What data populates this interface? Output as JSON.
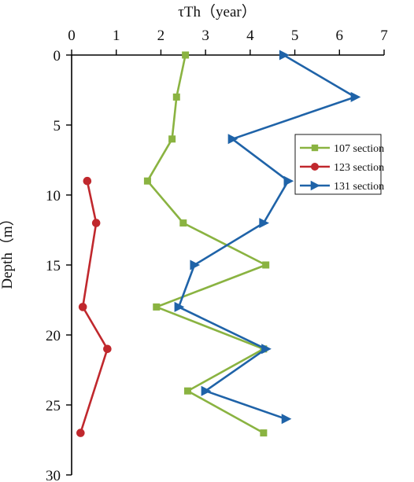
{
  "chart_data": {
    "type": "line",
    "xlabel": "τTh（year）",
    "ylabel": "Depth（m）",
    "xlim": [
      0,
      7
    ],
    "ylim": [
      0,
      30
    ],
    "y_inverted": true,
    "x_axis_position": "top",
    "x_ticks": [
      "0",
      "1",
      "2",
      "3",
      "4",
      "5",
      "6",
      "7"
    ],
    "y_ticks": [
      "0",
      "5",
      "10",
      "15",
      "20",
      "25",
      "30"
    ],
    "legend_position": "right",
    "grid": false,
    "series": [
      {
        "name": "107 section",
        "color": "#8ab341",
        "marker": "square",
        "points": [
          {
            "x": 2.55,
            "y": 0
          },
          {
            "x": 2.35,
            "y": 3
          },
          {
            "x": 2.25,
            "y": 6
          },
          {
            "x": 1.7,
            "y": 9
          },
          {
            "x": 2.5,
            "y": 12
          },
          {
            "x": 4.35,
            "y": 15
          },
          {
            "x": 1.9,
            "y": 18
          },
          {
            "x": 4.3,
            "y": 21
          },
          {
            "x": 2.6,
            "y": 24
          },
          {
            "x": 4.3,
            "y": 27
          }
        ]
      },
      {
        "name": "123 section",
        "color": "#c0282d",
        "marker": "circle",
        "points": [
          {
            "x": 0.35,
            "y": 9
          },
          {
            "x": 0.55,
            "y": 12
          },
          {
            "x": 0.25,
            "y": 18
          },
          {
            "x": 0.8,
            "y": 21
          },
          {
            "x": 0.2,
            "y": 27
          }
        ]
      },
      {
        "name": "131 section",
        "color": "#1f63a8",
        "marker": "triangle",
        "points": [
          {
            "x": 4.75,
            "y": 0
          },
          {
            "x": 6.35,
            "y": 3
          },
          {
            "x": 3.6,
            "y": 6
          },
          {
            "x": 4.85,
            "y": 9
          },
          {
            "x": 4.3,
            "y": 12
          },
          {
            "x": 2.75,
            "y": 15
          },
          {
            "x": 2.4,
            "y": 18
          },
          {
            "x": 4.35,
            "y": 21
          },
          {
            "x": 3.0,
            "y": 24
          },
          {
            "x": 4.8,
            "y": 26
          }
        ]
      }
    ]
  }
}
